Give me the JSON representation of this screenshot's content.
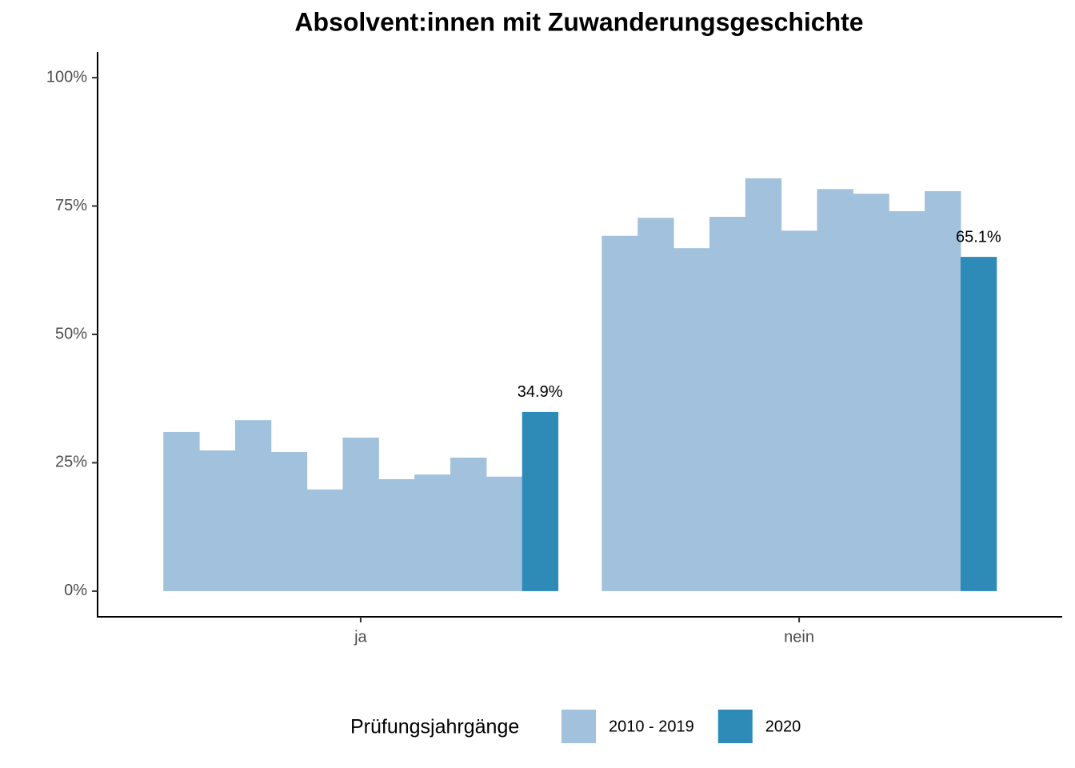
{
  "chart_data": {
    "type": "bar",
    "title": "Absolvent:innen mit Zuwanderungsgeschichte",
    "categories": [
      "ja",
      "nein"
    ],
    "legend_title": "Prüfungsjahrgänge",
    "series": [
      {
        "name": "2010 - 2019",
        "color": "#a1c1dc",
        "values": [
          [
            31.0,
            27.4,
            33.3,
            27.1,
            19.8,
            29.9,
            21.8,
            22.7,
            26.0,
            22.3
          ],
          [
            69.2,
            72.7,
            66.8,
            72.9,
            80.4,
            70.2,
            78.3,
            77.4,
            74.0,
            77.9
          ]
        ]
      },
      {
        "name": "2020",
        "color": "#2e8bb8",
        "values": [
          34.9,
          65.1
        ],
        "value_labels": [
          "34.9%",
          "65.1%"
        ]
      }
    ],
    "ylim": [
      -5,
      105
    ],
    "yticks": [
      {
        "value": 0,
        "label": "0%"
      },
      {
        "value": 25,
        "label": "25%"
      },
      {
        "value": 50,
        "label": "50%"
      },
      {
        "value": 75,
        "label": "75%"
      },
      {
        "value": 100,
        "label": "100%"
      }
    ]
  }
}
